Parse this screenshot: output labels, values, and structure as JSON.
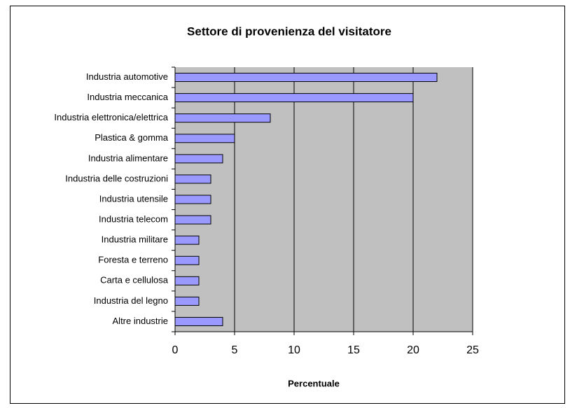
{
  "chart_data": {
    "type": "bar",
    "orientation": "horizontal",
    "title": "Settore di provenienza del visitatore",
    "xlabel": "Percentuale",
    "categories": [
      "Industria automotive",
      "Industria meccanica",
      "Industria elettronica/elettrica",
      "Plastica & gomma",
      "Industria alimentare",
      "Industria delle costruzioni",
      "Industria utensile",
      "Industria telecom",
      "Industria militare",
      "Foresta e terreno",
      "Carta e cellulosa",
      "Industria del legno",
      "Altre industrie"
    ],
    "values": [
      22,
      20,
      8,
      5,
      4,
      3,
      3,
      3,
      2,
      2,
      2,
      2,
      4
    ],
    "color": "#9999ff",
    "xlim": [
      0,
      25
    ],
    "xticks": [
      0,
      5,
      10,
      15,
      20,
      25
    ],
    "grid": true
  }
}
